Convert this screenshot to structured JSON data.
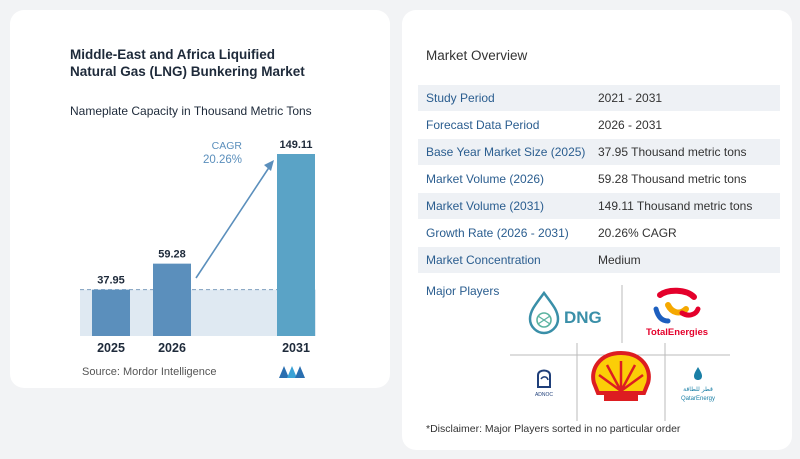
{
  "chart_data": {
    "type": "bar",
    "title": "Middle-East and Africa Liquified Natural Gas (LNG) Bunkering Market",
    "subtitle": "Nameplate Capacity in Thousand Metric Tons",
    "categories": [
      "2025",
      "2026",
      "2031"
    ],
    "values": [
      37.95,
      59.28,
      149.11
    ],
    "value_labels": [
      "37.95",
      "59.28",
      "149.11"
    ],
    "annotation": {
      "label": "CAGR",
      "value": "20.26%"
    },
    "bar_colors": [
      "#5b8fbc",
      "#5b8fbc",
      "#5aa3c6"
    ],
    "grid": false,
    "ylim": [
      0,
      149.11
    ]
  },
  "source": "Source:  Mordor Intelligence",
  "overview": {
    "title": "Market Overview",
    "rows": [
      {
        "key": "Study Period",
        "value": "2021 - 2031"
      },
      {
        "key": "Forecast Data Period",
        "value": "2026 - 2031"
      },
      {
        "key": "Base Year Market Size (2025)",
        "value": "37.95 Thousand metric tons"
      },
      {
        "key": "Market Volume (2026)",
        "value": "59.28 Thousand metric tons"
      },
      {
        "key": "Market Volume (2031)",
        "value": "149.11 Thousand metric tons"
      },
      {
        "key": "Growth Rate (2026 - 2031)",
        "value": "20.26% CAGR"
      },
      {
        "key": "Market Concentration",
        "value": "Medium"
      }
    ],
    "players_label": "Major Players",
    "players": [
      "DNG",
      "TotalEnergies",
      "ADNOC",
      "Shell",
      "QatarEnergy"
    ],
    "disclaimer": "*Disclaimer: Major Players sorted in no particular order"
  },
  "colors": {
    "accent": "#2a5d8f",
    "bar": "#5b8fbc",
    "bar_last": "#5aa3c6"
  }
}
